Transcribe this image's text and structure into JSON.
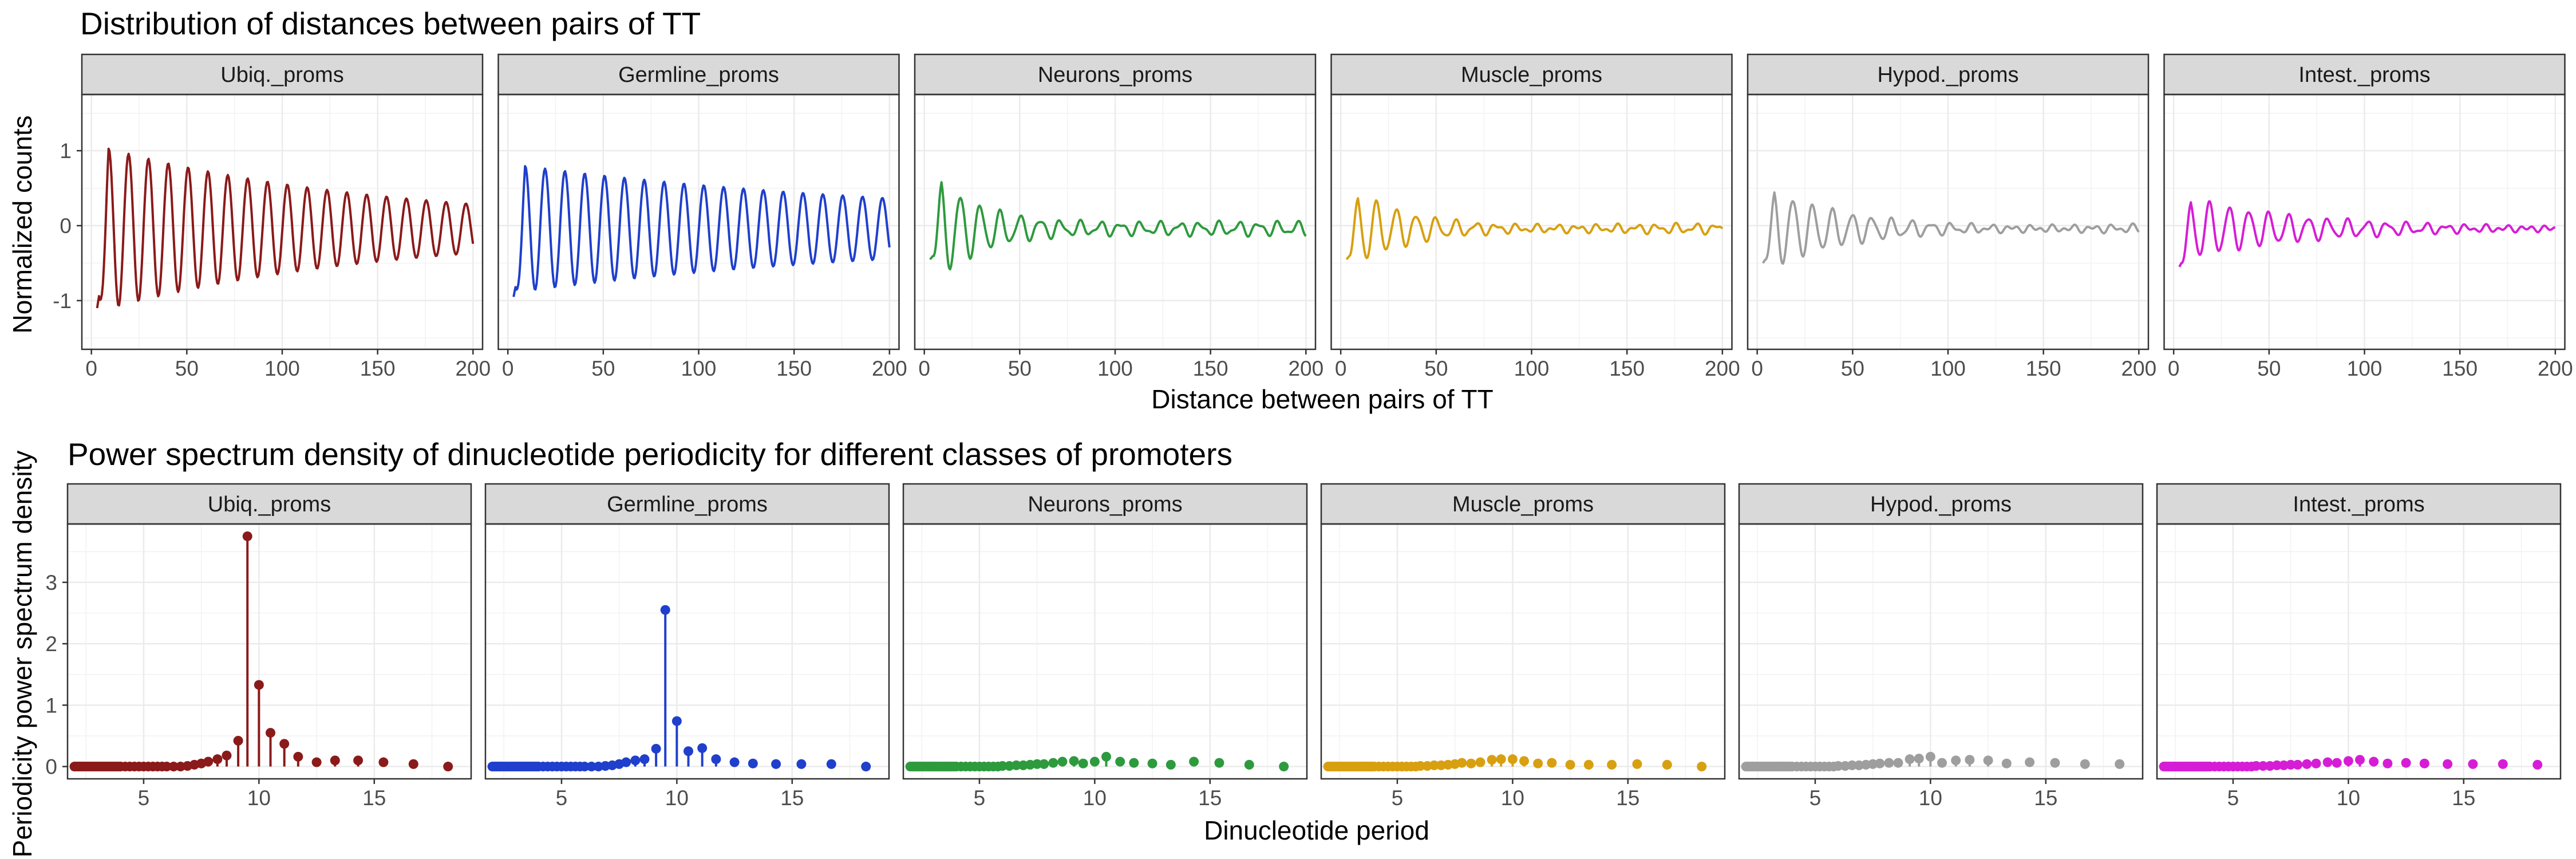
{
  "panels": [
    {
      "title": "Distribution of distances between pairs of TT"
    },
    {
      "title": "Power spectrum density of dinucleotide periodicity for different classes of promoters"
    }
  ],
  "chart_data": [
    {
      "type": "line",
      "title": "Distribution of distances between pairs of TT",
      "xlabel": "Distance between pairs of TT",
      "ylabel": "Normalized counts",
      "xlim": [
        -5,
        205
      ],
      "ylim": [
        -1.65,
        1.75
      ],
      "xticks": [
        0,
        50,
        100,
        150,
        200
      ],
      "yticks": [
        -1,
        0,
        1
      ],
      "grid": true,
      "facets": [
        {
          "label": "Ubiq._proms",
          "color": "#8B1A1A",
          "start": -1.1,
          "amp": 1.05,
          "decay": 0.0068,
          "phase": 0.0,
          "noise": 0.0,
          "floor": 0.05
        },
        {
          "label": "Germline_proms",
          "color": "#1F3FCC",
          "start": -0.95,
          "amp": 0.76,
          "decay": 0.0045,
          "phase": 0.0,
          "noise": 0.0,
          "floor": 0.09
        },
        {
          "label": "Neurons_proms",
          "color": "#2E9A3E",
          "start": -0.45,
          "amp": 0.72,
          "decay": 0.035,
          "phase": 0.4,
          "noise": 0.07,
          "floor": 0.04
        },
        {
          "label": "Muscle_proms",
          "color": "#D8A010",
          "start": -0.45,
          "amp": 0.52,
          "decay": 0.03,
          "phase": 0.4,
          "noise": 0.06,
          "floor": 0.03
        },
        {
          "label": "Hypod._proms",
          "color": "#9E9E9E",
          "start": -0.5,
          "amp": 0.5,
          "decay": 0.025,
          "phase": 0.4,
          "noise": 0.06,
          "floor": 0.04
        },
        {
          "label": "Intest._proms",
          "color": "#D61DD6",
          "start": -0.55,
          "amp": 0.36,
          "decay": 0.02,
          "phase": 0.4,
          "noise": 0.06,
          "floor": 0.04
        }
      ]
    },
    {
      "type": "lollipop",
      "title": "Power spectrum density of dinucleotide periodicity for different classes of promoters",
      "xlabel": "Dinucleotide period",
      "ylabel": "Periodicity power spectrum density",
      "xlim": [
        1.7,
        19.2
      ],
      "ylim": [
        -0.2,
        3.95
      ],
      "xticks": [
        5,
        10,
        15
      ],
      "yticks": [
        0,
        1,
        2,
        3
      ],
      "grid": true,
      "periods": [
        2.0,
        2.1,
        2.2,
        2.3,
        2.4,
        2.5,
        2.6,
        2.7,
        2.8,
        2.9,
        3.0,
        3.1,
        3.2,
        3.3,
        3.4,
        3.5,
        3.6,
        3.7,
        3.8,
        3.9,
        4.0,
        4.2,
        4.4,
        4.6,
        4.8,
        5.0,
        5.2,
        5.4,
        5.6,
        5.8,
        6.0,
        6.3,
        6.6,
        6.9,
        7.2,
        7.5,
        7.8,
        8.2,
        8.6,
        9.1,
        9.5,
        10.0,
        10.5,
        11.1,
        11.7,
        12.5,
        13.3,
        14.3,
        15.4,
        16.7,
        18.2
      ],
      "facets": [
        {
          "label": "Ubiq._proms",
          "color": "#8B1A1A",
          "values": [
            0,
            0,
            0,
            0,
            0,
            0,
            0,
            0,
            0,
            0,
            0,
            0,
            0,
            0,
            0,
            0,
            0,
            0,
            0,
            0,
            0,
            0,
            0,
            0,
            0,
            0,
            0,
            0,
            0,
            0,
            0,
            0,
            0,
            0.01,
            0.03,
            0.05,
            0.08,
            0.12,
            0.18,
            0.42,
            3.75,
            1.33,
            0.55,
            0.37,
            0.16,
            0.07,
            0.1,
            0.1,
            0.07,
            0.04,
            0
          ]
        },
        {
          "label": "Germline_proms",
          "color": "#1F3FCC",
          "values": [
            0,
            0,
            0,
            0,
            0,
            0,
            0,
            0,
            0,
            0,
            0,
            0,
            0,
            0,
            0,
            0,
            0,
            0,
            0,
            0,
            0,
            0,
            0,
            0,
            0,
            0,
            0,
            0,
            0,
            0,
            0,
            0,
            0,
            0.01,
            0.02,
            0.04,
            0.07,
            0.1,
            0.12,
            0.29,
            2.55,
            0.74,
            0.25,
            0.3,
            0.12,
            0.07,
            0.05,
            0.04,
            0.04,
            0.04,
            0
          ]
        },
        {
          "label": "Neurons_proms",
          "color": "#2E9A3E",
          "values": [
            0,
            0,
            0,
            0,
            0,
            0,
            0,
            0,
            0,
            0,
            0,
            0,
            0,
            0,
            0,
            0,
            0,
            0,
            0,
            0,
            0,
            0,
            0,
            0,
            0,
            0,
            0,
            0,
            0,
            0,
            0.01,
            0.01,
            0.02,
            0.02,
            0.03,
            0.04,
            0.04,
            0.06,
            0.08,
            0.09,
            0.05,
            0.08,
            0.16,
            0.08,
            0.06,
            0.05,
            0.03,
            0.08,
            0.06,
            0.03,
            0
          ]
        },
        {
          "label": "Muscle_proms",
          "color": "#D8A010",
          "values": [
            0,
            0,
            0,
            0,
            0,
            0,
            0,
            0,
            0,
            0,
            0,
            0,
            0,
            0,
            0,
            0,
            0,
            0,
            0,
            0,
            0,
            0,
            0,
            0,
            0,
            0,
            0,
            0,
            0,
            0,
            0.01,
            0.01,
            0.02,
            0.02,
            0.03,
            0.04,
            0.06,
            0.05,
            0.07,
            0.11,
            0.12,
            0.12,
            0.09,
            0.05,
            0.06,
            0.03,
            0.03,
            0.03,
            0.04,
            0.03,
            0
          ]
        },
        {
          "label": "Hypod._proms",
          "color": "#9E9E9E",
          "values": [
            0,
            0,
            0,
            0,
            0,
            0,
            0,
            0,
            0,
            0,
            0,
            0,
            0,
            0,
            0,
            0,
            0,
            0,
            0,
            0,
            0,
            0,
            0,
            0,
            0,
            0,
            0,
            0,
            0,
            0,
            0.01,
            0.01,
            0.02,
            0.02,
            0.03,
            0.04,
            0.05,
            0.06,
            0.06,
            0.12,
            0.13,
            0.16,
            0.06,
            0.1,
            0.11,
            0.1,
            0.05,
            0.07,
            0.06,
            0.04,
            0.04
          ]
        },
        {
          "label": "Intest._proms",
          "color": "#D61DD6",
          "values": [
            0,
            0,
            0,
            0,
            0,
            0,
            0,
            0,
            0,
            0,
            0,
            0,
            0,
            0,
            0,
            0,
            0,
            0,
            0,
            0,
            0,
            0,
            0,
            0,
            0,
            0,
            0,
            0,
            0,
            0,
            0.01,
            0.01,
            0.01,
            0.02,
            0.02,
            0.03,
            0.03,
            0.04,
            0.05,
            0.07,
            0.06,
            0.09,
            0.11,
            0.08,
            0.05,
            0.06,
            0.05,
            0.04,
            0.04,
            0.04,
            0.03
          ]
        }
      ]
    }
  ]
}
